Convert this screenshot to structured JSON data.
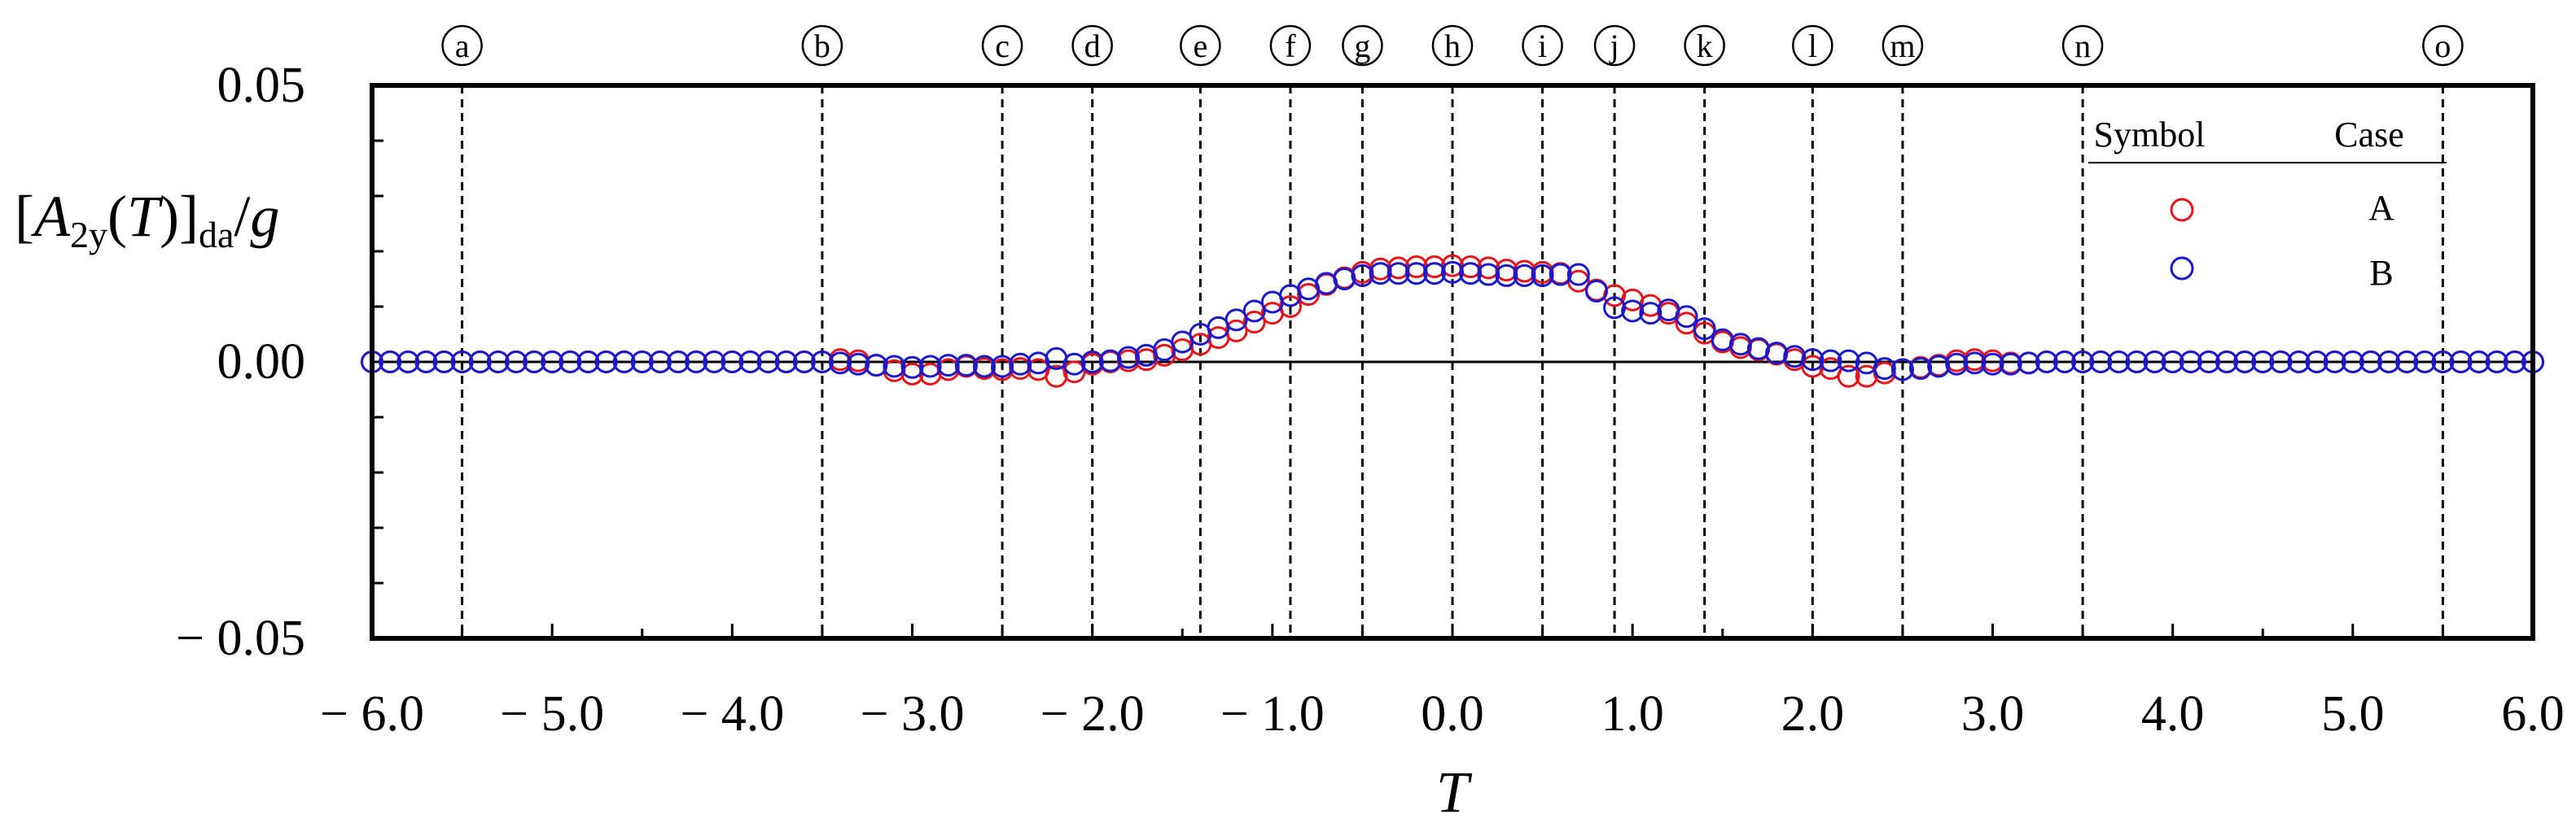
{
  "chart_data": {
    "type": "scatter",
    "ylabel_html": "[A<sub>2y</sub>(T)]<sub>da</sub>/g",
    "ylabel_parts": {
      "open": "[",
      "A": "A",
      "sub1": "2y",
      "mid": "(",
      "T": "T",
      "close": ")]",
      "sub2": "da",
      "slash": "/",
      "g": "g"
    },
    "xlabel": "T",
    "xlim": [
      -6.0,
      6.0
    ],
    "ylim": [
      -0.05,
      0.05
    ],
    "x_ticks": [
      "− 6.0",
      "− 5.0",
      "− 4.0",
      "− 3.0",
      "− 2.0",
      "− 1.0",
      "0.0",
      "1.0",
      "2.0",
      "3.0",
      "4.0",
      "5.0",
      "6.0"
    ],
    "y_ticks": [
      "0.05",
      "0.00",
      "− 0.05"
    ],
    "markers": [
      {
        "label": "a",
        "x": -5.5
      },
      {
        "label": "b",
        "x": -3.5
      },
      {
        "label": "c",
        "x": -2.5
      },
      {
        "label": "d",
        "x": -2.0
      },
      {
        "label": "e",
        "x": -1.4
      },
      {
        "label": "f",
        "x": -0.9
      },
      {
        "label": "g",
        "x": -0.5
      },
      {
        "label": "h",
        "x": 0.0
      },
      {
        "label": "i",
        "x": 0.5
      },
      {
        "label": "j",
        "x": 0.9
      },
      {
        "label": "k",
        "x": 1.4
      },
      {
        "label": "l",
        "x": 2.0
      },
      {
        "label": "m",
        "x": 2.5
      },
      {
        "label": "n",
        "x": 3.5
      },
      {
        "label": "o",
        "x": 5.5
      }
    ],
    "legend": {
      "header_symbol": "Symbol",
      "header_case": "Case",
      "position": "top-right"
    },
    "series": [
      {
        "name": "A",
        "color": "#e8141c",
        "x": [
          -6.0,
          -5.9,
          -5.8,
          -5.7,
          -5.6,
          -5.5,
          -5.4,
          -5.3,
          -5.2,
          -5.1,
          -5.0,
          -4.9,
          -4.8,
          -4.7,
          -4.6,
          -4.5,
          -4.4,
          -4.3,
          -4.2,
          -4.1,
          -4.0,
          -3.9,
          -3.8,
          -3.7,
          -3.6,
          -3.5,
          -3.4,
          -3.3,
          -3.2,
          -3.1,
          -3.0,
          -2.9,
          -2.8,
          -2.7,
          -2.6,
          -2.5,
          -2.4,
          -2.3,
          -2.2,
          -2.1,
          -2.0,
          -1.9,
          -1.8,
          -1.7,
          -1.6,
          -1.5,
          -1.4,
          -1.3,
          -1.2,
          -1.1,
          -1.0,
          -0.9,
          -0.8,
          -0.7,
          -0.6,
          -0.5,
          -0.4,
          -0.3,
          -0.2,
          -0.1,
          0.0,
          0.1,
          0.2,
          0.3,
          0.4,
          0.5,
          0.6,
          0.7,
          0.8,
          0.9,
          1.0,
          1.1,
          1.2,
          1.3,
          1.4,
          1.5,
          1.6,
          1.7,
          1.8,
          1.9,
          2.0,
          2.1,
          2.2,
          2.3,
          2.4,
          2.5,
          2.6,
          2.7,
          2.8,
          2.9,
          3.0,
          3.1,
          3.2,
          3.3,
          3.4,
          3.5,
          3.6,
          3.7,
          3.8,
          3.9,
          4.0,
          4.1,
          4.2,
          4.3,
          4.4,
          4.5,
          4.6,
          4.7,
          4.8,
          4.9,
          5.0,
          5.1,
          5.2,
          5.3,
          5.4,
          5.5,
          5.6,
          5.7,
          5.8,
          5.9,
          6.0
        ],
        "y": [
          0,
          0,
          0,
          0,
          0,
          0,
          0,
          0,
          0,
          0,
          0,
          0,
          0,
          0,
          0,
          0,
          0,
          0,
          0,
          0,
          0,
          0,
          0,
          0,
          0,
          0,
          0.0004,
          0.0002,
          -0.0006,
          -0.0016,
          -0.0022,
          -0.0022,
          -0.0014,
          -0.0008,
          -0.0012,
          -0.0014,
          -0.0012,
          -0.0014,
          -0.0026,
          -0.0018,
          -0.0004,
          0,
          0.0002,
          0.0004,
          0.0012,
          0.0022,
          0.0032,
          0.0044,
          0.0056,
          0.0072,
          0.0088,
          0.01,
          0.0122,
          0.014,
          0.0152,
          0.0162,
          0.0168,
          0.017,
          0.0172,
          0.0172,
          0.0174,
          0.0172,
          0.017,
          0.0166,
          0.0164,
          0.0162,
          0.016,
          0.0146,
          0.013,
          0.012,
          0.0112,
          0.0102,
          0.0088,
          0.007,
          0.0052,
          0.0036,
          0.0026,
          0.0022,
          0.0014,
          0.0004,
          -0.0008,
          -0.0012,
          -0.0026,
          -0.0026,
          -0.002,
          -0.0014,
          -0.001,
          -0.0006,
          0.0002,
          0.0004,
          0.0002,
          -0.0002,
          -0.0002,
          0,
          0,
          0,
          0,
          0,
          0,
          0,
          0,
          0,
          0,
          0,
          0,
          0,
          0,
          0,
          0,
          0,
          0,
          0,
          0,
          0,
          0,
          0,
          0,
          0,
          0,
          0,
          0
        ]
      },
      {
        "name": "B",
        "color": "#1a1acc",
        "x": [
          -6.0,
          -5.9,
          -5.8,
          -5.7,
          -5.6,
          -5.5,
          -5.4,
          -5.3,
          -5.2,
          -5.1,
          -5.0,
          -4.9,
          -4.8,
          -4.7,
          -4.6,
          -4.5,
          -4.4,
          -4.3,
          -4.2,
          -4.1,
          -4.0,
          -3.9,
          -3.8,
          -3.7,
          -3.6,
          -3.5,
          -3.4,
          -3.3,
          -3.2,
          -3.1,
          -3.0,
          -2.9,
          -2.8,
          -2.7,
          -2.6,
          -2.5,
          -2.4,
          -2.3,
          -2.2,
          -2.1,
          -2.0,
          -1.9,
          -1.8,
          -1.7,
          -1.6,
          -1.5,
          -1.4,
          -1.3,
          -1.2,
          -1.1,
          -1.0,
          -0.9,
          -0.8,
          -0.7,
          -0.6,
          -0.5,
          -0.4,
          -0.3,
          -0.2,
          -0.1,
          0.0,
          0.1,
          0.2,
          0.3,
          0.4,
          0.5,
          0.6,
          0.7,
          0.8,
          0.9,
          1.0,
          1.1,
          1.2,
          1.3,
          1.4,
          1.5,
          1.6,
          1.7,
          1.8,
          1.9,
          2.0,
          2.1,
          2.2,
          2.3,
          2.4,
          2.5,
          2.6,
          2.7,
          2.8,
          2.9,
          3.0,
          3.1,
          3.2,
          3.3,
          3.4,
          3.5,
          3.6,
          3.7,
          3.8,
          3.9,
          4.0,
          4.1,
          4.2,
          4.3,
          4.4,
          4.5,
          4.6,
          4.7,
          4.8,
          4.9,
          5.0,
          5.1,
          5.2,
          5.3,
          5.4,
          5.5,
          5.6,
          5.7,
          5.8,
          5.9,
          6.0
        ],
        "y": [
          0,
          0,
          0,
          0,
          0,
          0,
          0,
          0,
          0,
          0,
          0,
          0,
          0,
          0,
          0,
          0,
          0,
          0,
          0,
          0,
          0,
          0,
          0,
          0,
          0,
          0,
          -0.0002,
          -0.0004,
          -0.0006,
          -0.0008,
          -0.001,
          -0.0008,
          -0.0006,
          -0.0006,
          -0.0008,
          -0.0008,
          -0.0004,
          -0.0002,
          0.0006,
          -0.0004,
          0,
          0.0002,
          0.0008,
          0.0012,
          0.0022,
          0.0036,
          0.005,
          0.0062,
          0.0076,
          0.0092,
          0.0108,
          0.012,
          0.0132,
          0.0142,
          0.015,
          0.0156,
          0.016,
          0.016,
          0.016,
          0.016,
          0.0162,
          0.016,
          0.0158,
          0.0156,
          0.0156,
          0.0156,
          0.0158,
          0.0158,
          0.0128,
          0.0098,
          0.0092,
          0.0088,
          0.0094,
          0.0082,
          0.006,
          0.004,
          0.0032,
          0.0024,
          0.0016,
          0.001,
          0.0004,
          0.0002,
          0.0002,
          -0.0002,
          -0.0012,
          -0.0014,
          -0.0012,
          -0.0008,
          -0.0004,
          -0.0002,
          -0.0004,
          -0.0004,
          -0.0002,
          0,
          0,
          0,
          0,
          0,
          0,
          0,
          0,
          0,
          0,
          0,
          0,
          0,
          0,
          0,
          0,
          0,
          0,
          0,
          0,
          0,
          0,
          0,
          0,
          0,
          0,
          0,
          0
        ]
      }
    ]
  }
}
